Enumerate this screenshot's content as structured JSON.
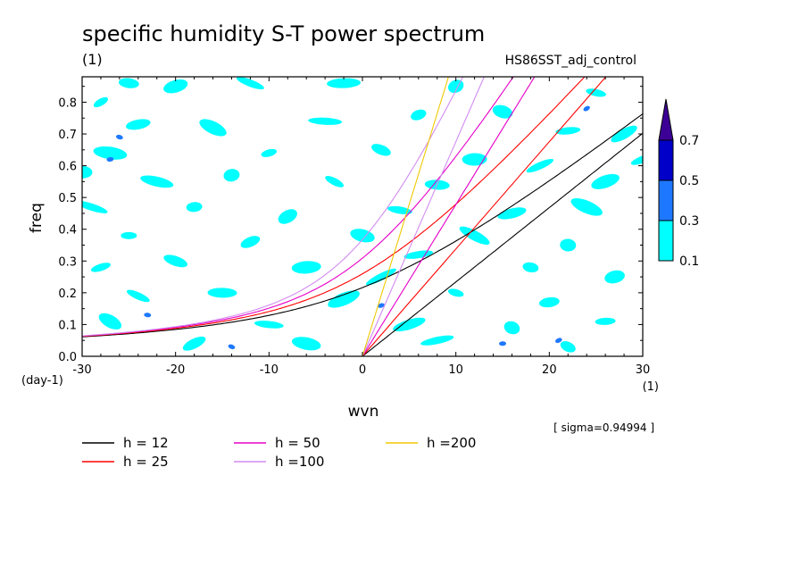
{
  "chart_data": {
    "type": "heatmap",
    "title": "specific humidity S-T power spectrum",
    "subtitle_left": "(1)",
    "subtitle_right": "HS86SST_adj_control",
    "xlabel": "wvn",
    "ylabel": "freq",
    "x_unit": "(1)",
    "y_unit": "(day-1)",
    "xlim": [
      -30,
      30
    ],
    "ylim": [
      0,
      0.88
    ],
    "xticks": [
      "-30",
      "-20",
      "-10",
      "0",
      "10",
      "20",
      "30"
    ],
    "xtick_values": [
      -30,
      -20,
      -10,
      0,
      10,
      20,
      30
    ],
    "yticks": [
      "0.0",
      "0.1",
      "0.2",
      "0.3",
      "0.4",
      "0.5",
      "0.6",
      "0.7",
      "0.8"
    ],
    "ytick_values": [
      0,
      0.1,
      0.2,
      0.3,
      0.4,
      0.5,
      0.6,
      0.7,
      0.8
    ],
    "note": "[ sigma=0.94994 ]",
    "colorbar": {
      "levels": [
        "0.1",
        "0.3",
        "0.5",
        "0.7"
      ],
      "level_values": [
        0.1,
        0.3,
        0.5,
        0.7
      ],
      "colors": [
        "#00ffff",
        "#1e78ff",
        "#0000c8",
        "#3c0096"
      ]
    },
    "shading": {
      "field": "power",
      "coverage_note": "scattered patches mostly 0.1-0.3, a few 0.3-0.5 spots",
      "patches": [
        {
          "x": -28,
          "y": 0.8,
          "level": 0.1
        },
        {
          "x": -25,
          "y": 0.86,
          "level": 0.1
        },
        {
          "x": -20,
          "y": 0.85,
          "level": 0.1
        },
        {
          "x": -12,
          "y": 0.86,
          "level": 0.1
        },
        {
          "x": -2,
          "y": 0.86,
          "level": 0.1
        },
        {
          "x": 10,
          "y": 0.85,
          "level": 0.1
        },
        {
          "x": 25,
          "y": 0.83,
          "level": 0.1
        },
        {
          "x": -24,
          "y": 0.73,
          "level": 0.1
        },
        {
          "x": -16,
          "y": 0.72,
          "level": 0.1
        },
        {
          "x": -4,
          "y": 0.74,
          "level": 0.1
        },
        {
          "x": 6,
          "y": 0.76,
          "level": 0.1
        },
        {
          "x": 15,
          "y": 0.77,
          "level": 0.1
        },
        {
          "x": 22,
          "y": 0.71,
          "level": 0.1
        },
        {
          "x": 28,
          "y": 0.7,
          "level": 0.1
        },
        {
          "x": -27,
          "y": 0.64,
          "level": 0.1
        },
        {
          "x": -10,
          "y": 0.64,
          "level": 0.1
        },
        {
          "x": 2,
          "y": 0.65,
          "level": 0.1
        },
        {
          "x": 12,
          "y": 0.62,
          "level": 0.1
        },
        {
          "x": 19,
          "y": 0.6,
          "level": 0.1
        },
        {
          "x": -22,
          "y": 0.55,
          "level": 0.1
        },
        {
          "x": -14,
          "y": 0.57,
          "level": 0.1
        },
        {
          "x": -3,
          "y": 0.55,
          "level": 0.1
        },
        {
          "x": 8,
          "y": 0.54,
          "level": 0.1
        },
        {
          "x": 26,
          "y": 0.55,
          "level": 0.1
        },
        {
          "x": -29,
          "y": 0.47,
          "level": 0.1
        },
        {
          "x": -18,
          "y": 0.47,
          "level": 0.1
        },
        {
          "x": -8,
          "y": 0.44,
          "level": 0.1
        },
        {
          "x": 4,
          "y": 0.46,
          "level": 0.1
        },
        {
          "x": 16,
          "y": 0.45,
          "level": 0.1
        },
        {
          "x": 24,
          "y": 0.47,
          "level": 0.1
        },
        {
          "x": -25,
          "y": 0.38,
          "level": 0.1
        },
        {
          "x": -12,
          "y": 0.36,
          "level": 0.1
        },
        {
          "x": 0,
          "y": 0.38,
          "level": 0.1
        },
        {
          "x": 6,
          "y": 0.32,
          "level": 0.1
        },
        {
          "x": 12,
          "y": 0.38,
          "level": 0.1
        },
        {
          "x": 22,
          "y": 0.35,
          "level": 0.1
        },
        {
          "x": -28,
          "y": 0.28,
          "level": 0.1
        },
        {
          "x": -20,
          "y": 0.3,
          "level": 0.1
        },
        {
          "x": -6,
          "y": 0.28,
          "level": 0.1
        },
        {
          "x": 2,
          "y": 0.25,
          "level": 0.1
        },
        {
          "x": 18,
          "y": 0.28,
          "level": 0.1
        },
        {
          "x": 27,
          "y": 0.25,
          "level": 0.1
        },
        {
          "x": -24,
          "y": 0.19,
          "level": 0.1
        },
        {
          "x": -15,
          "y": 0.2,
          "level": 0.1
        },
        {
          "x": -2,
          "y": 0.18,
          "level": 0.1
        },
        {
          "x": 10,
          "y": 0.2,
          "level": 0.1
        },
        {
          "x": 20,
          "y": 0.17,
          "level": 0.1
        },
        {
          "x": -27,
          "y": 0.11,
          "level": 0.1
        },
        {
          "x": -10,
          "y": 0.1,
          "level": 0.1
        },
        {
          "x": 5,
          "y": 0.1,
          "level": 0.1
        },
        {
          "x": 16,
          "y": 0.09,
          "level": 0.1
        },
        {
          "x": 26,
          "y": 0.11,
          "level": 0.1
        },
        {
          "x": -18,
          "y": 0.04,
          "level": 0.1
        },
        {
          "x": -6,
          "y": 0.04,
          "level": 0.1
        },
        {
          "x": 8,
          "y": 0.05,
          "level": 0.1
        },
        {
          "x": 22,
          "y": 0.03,
          "level": 0.1
        },
        {
          "x": -30,
          "y": 0.58,
          "level": 0.1
        },
        {
          "x": 30,
          "y": 0.62,
          "level": 0.1
        },
        {
          "x": -26,
          "y": 0.69,
          "level": 0.3
        },
        {
          "x": -27,
          "y": 0.62,
          "level": 0.3
        },
        {
          "x": 24,
          "y": 0.78,
          "level": 0.3
        },
        {
          "x": -23,
          "y": 0.13,
          "level": 0.3
        },
        {
          "x": 2,
          "y": 0.16,
          "level": 0.3
        },
        {
          "x": -14,
          "y": 0.03,
          "level": 0.3
        },
        {
          "x": 15,
          "y": 0.04,
          "level": 0.3
        },
        {
          "x": 21,
          "y": 0.05,
          "level": 0.3
        }
      ]
    },
    "series": [
      {
        "name": "h = 12",
        "h": 12,
        "color": "#000000",
        "mode": "kelvin"
      },
      {
        "name": "h = 12",
        "h": 12,
        "color": "#000000",
        "mode": "ig_n0"
      },
      {
        "name": "h = 25",
        "h": 25,
        "color": "#ff0000",
        "mode": "kelvin"
      },
      {
        "name": "h = 25",
        "h": 25,
        "color": "#ff0000",
        "mode": "ig_n0"
      },
      {
        "name": "h = 50",
        "h": 50,
        "color": "#e600c8",
        "mode": "kelvin"
      },
      {
        "name": "h = 50",
        "h": 50,
        "color": "#e600c8",
        "mode": "ig_n0"
      },
      {
        "name": "h =100",
        "h": 100,
        "color": "#d28cf0",
        "mode": "kelvin"
      },
      {
        "name": "h =100",
        "h": 100,
        "color": "#d28cf0",
        "mode": "ig_n0"
      },
      {
        "name": "h =200",
        "h": 200,
        "color": "#f0c800",
        "mode": "kelvin"
      }
    ],
    "legend": {
      "placement": "bottom",
      "entries": [
        {
          "label": "h = 12",
          "color": "#000000"
        },
        {
          "label": "h = 25",
          "color": "#ff0000"
        },
        {
          "label": "h = 50",
          "color": "#e600c8"
        },
        {
          "label": "h =100",
          "color": "#d28cf0"
        },
        {
          "label": "h =200",
          "color": "#f0c800"
        }
      ]
    },
    "grid": false
  }
}
